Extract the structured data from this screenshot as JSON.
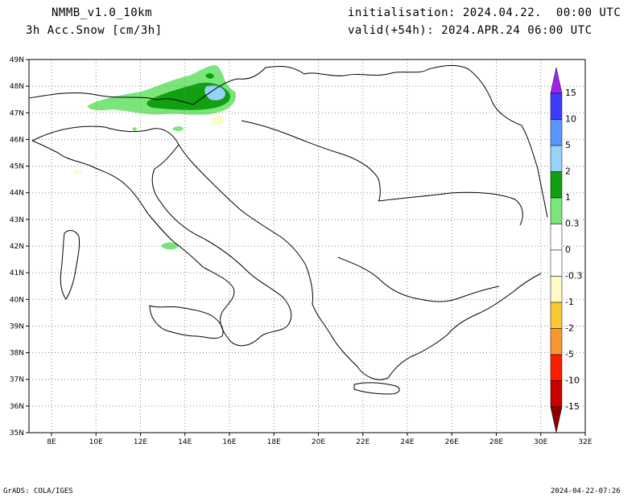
{
  "header": {
    "model": "NMMB_v1.0_10km",
    "variable": "3h Acc.Snow [cm/3h]",
    "init": "initialisation: 2024.04.22.  00:00 UTC",
    "valid": "valid(+54h): 2024.APR.24 06:00 UTC"
  },
  "footer": {
    "left": "GrADS: COLA/IGES",
    "right": "2024-04-22-07:26"
  },
  "map": {
    "lat_labels": [
      "49N",
      "48N",
      "47N",
      "46N",
      "45N",
      "44N",
      "43N",
      "42N",
      "41N",
      "40N",
      "39N",
      "38N",
      "37N",
      "36N",
      "35N"
    ],
    "lon_labels": [
      "8E",
      "10E",
      "12E",
      "14E",
      "16E",
      "18E",
      "20E",
      "22E",
      "24E",
      "26E",
      "28E",
      "30E",
      "32E"
    ]
  },
  "legend": {
    "labels": [
      "15",
      "10",
      "5",
      "2",
      "1",
      "0.3",
      "0",
      "-0.3",
      "-1",
      "-2",
      "-5",
      "-10",
      "-15"
    ],
    "colors": [
      "#a020f0",
      "#3c3cff",
      "#5a96ff",
      "#96d2fa",
      "#10a010",
      "#7ae67a",
      "#ffffff",
      "#ffffff",
      "#fffac8",
      "#fac832",
      "#fa9632",
      "#fa1e00",
      "#c80000",
      "#8b0000"
    ]
  }
}
